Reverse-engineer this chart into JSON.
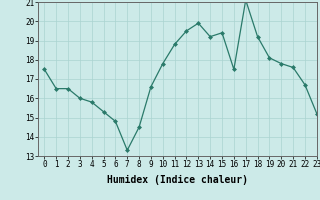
{
  "x": [
    0,
    1,
    2,
    3,
    4,
    5,
    6,
    7,
    8,
    9,
    10,
    11,
    12,
    13,
    14,
    15,
    16,
    17,
    18,
    19,
    20,
    21,
    22,
    23
  ],
  "y": [
    17.5,
    16.5,
    16.5,
    16.0,
    15.8,
    15.3,
    14.8,
    13.3,
    14.5,
    16.6,
    17.8,
    18.8,
    19.5,
    19.9,
    19.2,
    19.4,
    17.5,
    21.1,
    19.2,
    18.1,
    17.8,
    17.6,
    16.7,
    15.2
  ],
  "xlabel": "Humidex (Indice chaleur)",
  "ylim": [
    13,
    21
  ],
  "xlim": [
    -0.5,
    23
  ],
  "yticks": [
    13,
    14,
    15,
    16,
    17,
    18,
    19,
    20,
    21
  ],
  "xticks": [
    0,
    1,
    2,
    3,
    4,
    5,
    6,
    7,
    8,
    9,
    10,
    11,
    12,
    13,
    14,
    15,
    16,
    17,
    18,
    19,
    20,
    21,
    22,
    23
  ],
  "line_color": "#2a7a6a",
  "marker_color": "#2a7a6a",
  "bg_color": "#cceae8",
  "grid_color": "#aad4d0",
  "tick_label_fontsize": 5.5,
  "xlabel_fontsize": 7.0
}
